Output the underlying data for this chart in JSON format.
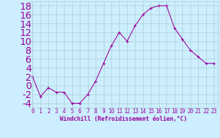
{
  "x": [
    0,
    1,
    2,
    3,
    4,
    5,
    6,
    7,
    8,
    9,
    10,
    11,
    12,
    13,
    14,
    15,
    16,
    17,
    18,
    19,
    20,
    21,
    22,
    23
  ],
  "y": [
    2,
    -2.5,
    -0.5,
    -1.5,
    -1.5,
    -4,
    -4,
    -2,
    1,
    5,
    9,
    12,
    10,
    13.5,
    16,
    17.5,
    18,
    18,
    13,
    10.5,
    8,
    6.5,
    5,
    5
  ],
  "line_color": "#9b009b",
  "marker": "+",
  "marker_size": 3,
  "bg_color": "#cceeff",
  "grid_color": "#aacccc",
  "xlabel": "Windchill (Refroidissement éolien,°C)",
  "xlabel_color": "#9b009b",
  "xlabel_fontsize": 6,
  "tick_color": "#9b009b",
  "tick_fontsize": 5.5,
  "ylim": [
    -5,
    19
  ],
  "yticks": [
    -4,
    -2,
    0,
    2,
    4,
    6,
    8,
    10,
    12,
    14,
    16,
    18
  ],
  "xticks": [
    0,
    1,
    2,
    3,
    4,
    5,
    6,
    7,
    8,
    9,
    10,
    11,
    12,
    13,
    14,
    15,
    16,
    17,
    18,
    19,
    20,
    21,
    22,
    23
  ],
  "xlim": [
    -0.5,
    23.5
  ]
}
